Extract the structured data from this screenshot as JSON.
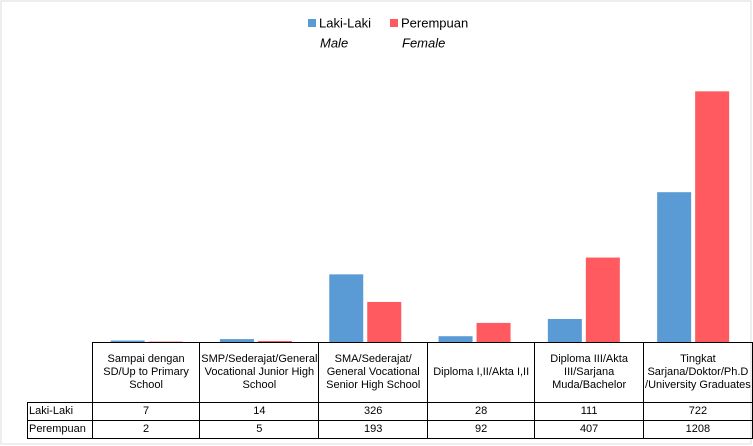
{
  "chart_data": {
    "type": "bar",
    "categories": [
      "Sampai dengan SD/Up to Primary School",
      "SMP/Sederajat/General Vocational Junior High School",
      "SMA/Sederajat/ General Vocational Senior High School",
      "Diploma I,II/Akta I,II",
      "Diploma III/Akta III/Sarjana Muda/Bachelor",
      "Tingkat Sarjana/Doktor/Ph.D /University Graduates"
    ],
    "series": [
      {
        "name": "Laki-Laki",
        "name_en": "Male",
        "color": "#5b9bd5",
        "values": [
          7,
          14,
          326,
          28,
          111,
          722
        ]
      },
      {
        "name": "Perempuan",
        "name_en": "Female",
        "color": "#ff5a5f",
        "values": [
          2,
          5,
          193,
          92,
          407,
          1208
        ]
      }
    ],
    "ylim": [
      0,
      1200
    ]
  }
}
